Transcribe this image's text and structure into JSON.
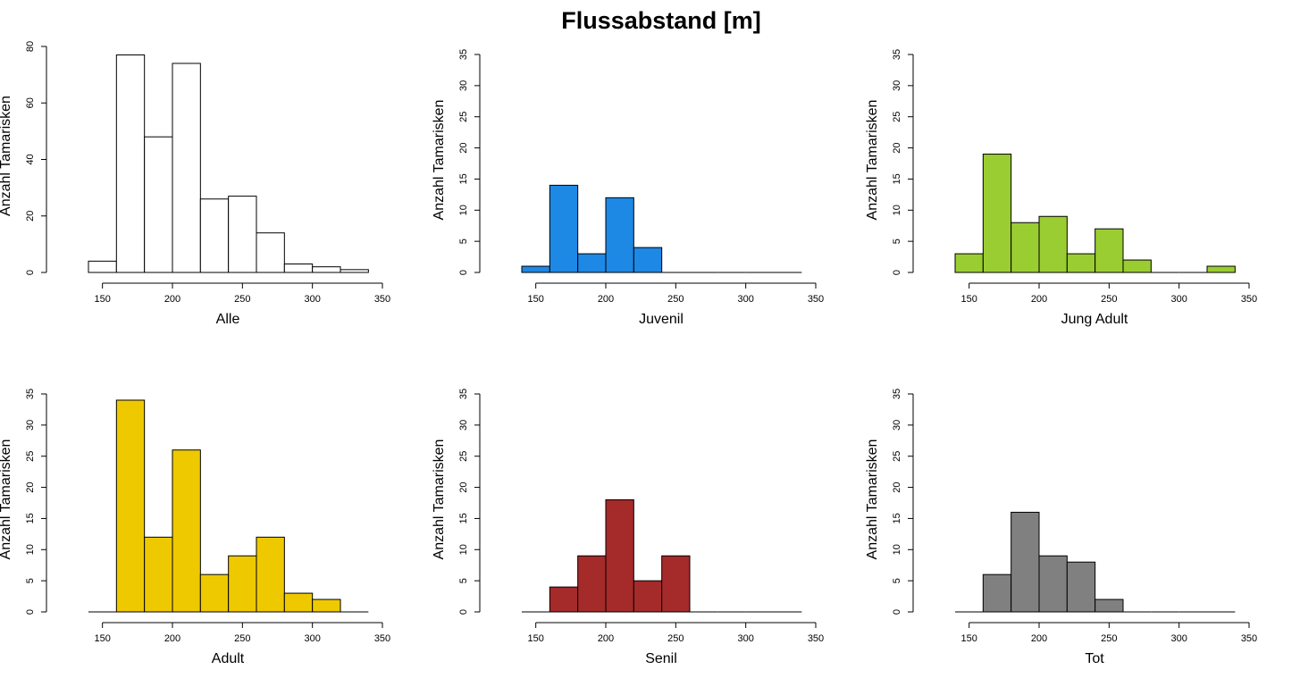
{
  "title": "Flussabstand [m]",
  "chart_data": [
    {
      "type": "bar",
      "xlabel": "Alle",
      "ylabel": "Anzahl Tamarisken",
      "color": "#ffffff",
      "bin_start": 140,
      "bin_width": 20,
      "values": [
        4,
        77,
        48,
        74,
        26,
        27,
        14,
        3,
        2,
        1
      ],
      "xlim": [
        140,
        350
      ],
      "xticks": [
        150,
        200,
        250,
        300,
        350
      ],
      "ylim": [
        0,
        80
      ],
      "yticks": [
        0,
        20,
        40,
        60,
        80
      ]
    },
    {
      "type": "bar",
      "xlabel": "Juvenil",
      "ylabel": "Anzahl Tamarisken",
      "color": "#1e88e5",
      "bin_start": 140,
      "bin_width": 20,
      "values": [
        1,
        14,
        3,
        12,
        4,
        0,
        0,
        0,
        0,
        0
      ],
      "xlim": [
        140,
        350
      ],
      "xticks": [
        150,
        200,
        250,
        300,
        350
      ],
      "ylim": [
        0,
        35
      ],
      "yticks": [
        0,
        5,
        10,
        15,
        20,
        25,
        30,
        35
      ]
    },
    {
      "type": "bar",
      "xlabel": "Jung Adult",
      "ylabel": "Anzahl Tamarisken",
      "color": "#9acd32",
      "bin_start": 140,
      "bin_width": 20,
      "values": [
        3,
        19,
        8,
        9,
        3,
        7,
        2,
        0,
        0,
        1
      ],
      "xlim": [
        140,
        350
      ],
      "xticks": [
        150,
        200,
        250,
        300,
        350
      ],
      "ylim": [
        0,
        35
      ],
      "yticks": [
        0,
        5,
        10,
        15,
        20,
        25,
        30,
        35
      ]
    },
    {
      "type": "bar",
      "xlabel": "Adult",
      "ylabel": "Anzahl Tamarisken",
      "color": "#eec900",
      "bin_start": 140,
      "bin_width": 20,
      "values": [
        0,
        34,
        12,
        26,
        6,
        9,
        12,
        3,
        2,
        0
      ],
      "xlim": [
        140,
        350
      ],
      "xticks": [
        150,
        200,
        250,
        300,
        350
      ],
      "ylim": [
        0,
        35
      ],
      "yticks": [
        0,
        5,
        10,
        15,
        20,
        25,
        30,
        35
      ]
    },
    {
      "type": "bar",
      "xlabel": "Senil",
      "ylabel": "Anzahl Tamarisken",
      "color": "#a52a2a",
      "bin_start": 140,
      "bin_width": 20,
      "values": [
        0,
        4,
        9,
        18,
        5,
        9,
        0,
        0,
        0,
        0
      ],
      "xlim": [
        140,
        350
      ],
      "xticks": [
        150,
        200,
        250,
        300,
        350
      ],
      "ylim": [
        0,
        35
      ],
      "yticks": [
        0,
        5,
        10,
        15,
        20,
        25,
        30,
        35
      ]
    },
    {
      "type": "bar",
      "xlabel": "Tot",
      "ylabel": "Anzahl Tamarisken",
      "color": "#808080",
      "bin_start": 140,
      "bin_width": 20,
      "values": [
        0,
        6,
        16,
        9,
        8,
        2,
        0,
        0,
        0,
        0
      ],
      "xlim": [
        140,
        350
      ],
      "xticks": [
        150,
        200,
        250,
        300,
        350
      ],
      "ylim": [
        0,
        35
      ],
      "yticks": [
        0,
        5,
        10,
        15,
        20,
        25,
        30,
        35
      ]
    }
  ]
}
